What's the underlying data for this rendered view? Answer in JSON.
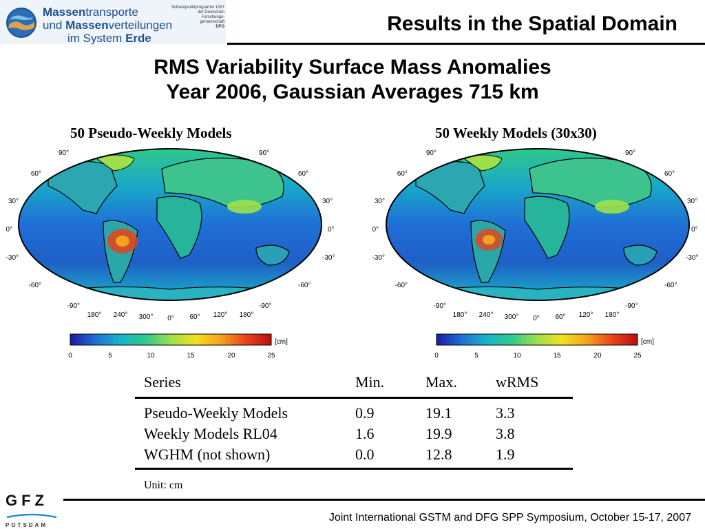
{
  "logo": {
    "line1_bold": "Massen",
    "line1_rest": "transporte",
    "line2_pre": "und ",
    "line2_bold": "Massen",
    "line2_rest": "verteilungen",
    "line3_pre": "im System ",
    "line3_bold": "Erde",
    "small": [
      "Schwerpunktprogramm 1257",
      "der Deutschen",
      "Forschungs-",
      "gemeinschaft",
      "DFG"
    ]
  },
  "header": {
    "title": "Results in the Spatial Domain"
  },
  "slide": {
    "title_line1": "RMS Variability Surface Mass Anomalies",
    "title_line2": "Year 2006, Gaussian Averages 715 km"
  },
  "maps": [
    {
      "label": "50 Pseudo-Weekly Models"
    },
    {
      "label": "50 Weekly Models (30x30)"
    }
  ],
  "map_axes": {
    "lat_labels_left": [
      "90°",
      "60°",
      "30°",
      "0°",
      "-30°",
      "-60°",
      "-90°"
    ],
    "lat_labels_right": [
      "90°",
      "60°",
      "30°",
      "0°",
      "-30°",
      "-60°",
      "-90°"
    ],
    "lon_labels": [
      "180°",
      "240°",
      "300°",
      "0°",
      "60°",
      "120°",
      "180°"
    ]
  },
  "colorbar": {
    "unit": "[cm]",
    "ticks": [
      "0",
      "5",
      "10",
      "15",
      "20",
      "25"
    ],
    "colors": [
      "#1a1aa6",
      "#1f6fd6",
      "#19b5c8",
      "#2fc98a",
      "#9ee04a",
      "#f2e021",
      "#f7a11c",
      "#e8431a",
      "#b80f0f"
    ]
  },
  "table": {
    "headers": [
      "Series",
      "Min.",
      "Max.",
      "wRMS"
    ],
    "rows": [
      [
        "Pseudo-Weekly Models",
        "0.9",
        "19.1",
        "3.3"
      ],
      [
        "Weekly Models RL04",
        "1.6",
        "19.9",
        "3.8"
      ],
      [
        "WGHM (not shown)",
        "0.0",
        "12.8",
        "1.9"
      ]
    ],
    "unit_note": "Unit: cm"
  },
  "gfz": {
    "name": "GFZ",
    "sub": "POTSDAM"
  },
  "footer": {
    "text": "Joint International GSTM and DFG SPP Symposium, October 15-17, 2007"
  }
}
